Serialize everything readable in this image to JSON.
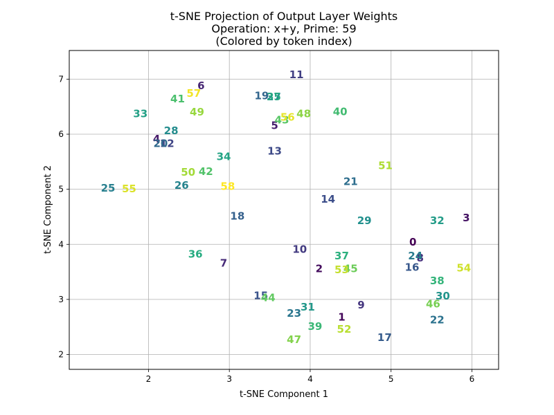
{
  "chart_data": {
    "type": "scatter",
    "title_lines": [
      "t-SNE Projection of Output Layer Weights",
      "Operation: x+y, Prime: 59",
      "(Colored by token index)"
    ],
    "xlabel": "t-SNE Component 1",
    "ylabel": "t-SNE Component 2",
    "xlim": [
      1.02,
      6.33
    ],
    "ylim": [
      1.73,
      7.52
    ],
    "xticks": [
      2,
      3,
      4,
      5,
      6
    ],
    "yticks": [
      2,
      3,
      4,
      5,
      6,
      7
    ],
    "grid": true,
    "colormap": "viridis",
    "color_min": 0,
    "color_max": 58,
    "points": [
      {
        "label": "0",
        "x": 5.27,
        "y": 4.04
      },
      {
        "label": "1",
        "x": 4.39,
        "y": 2.68
      },
      {
        "label": "2",
        "x": 4.11,
        "y": 3.56
      },
      {
        "label": "3",
        "x": 5.93,
        "y": 4.48
      },
      {
        "label": "4",
        "x": 2.1,
        "y": 5.91
      },
      {
        "label": "5",
        "x": 3.56,
        "y": 6.16
      },
      {
        "label": "6",
        "x": 2.65,
        "y": 6.88
      },
      {
        "label": "7",
        "x": 2.93,
        "y": 3.66
      },
      {
        "label": "8",
        "x": 5.36,
        "y": 3.75
      },
      {
        "label": "9",
        "x": 4.63,
        "y": 2.9
      },
      {
        "label": "10",
        "x": 3.87,
        "y": 3.91
      },
      {
        "label": "11",
        "x": 3.83,
        "y": 7.08
      },
      {
        "label": "12",
        "x": 2.23,
        "y": 5.83
      },
      {
        "label": "13",
        "x": 3.56,
        "y": 5.69
      },
      {
        "label": "14",
        "x": 4.22,
        "y": 4.82
      },
      {
        "label": "15",
        "x": 3.39,
        "y": 3.07
      },
      {
        "label": "16",
        "x": 5.26,
        "y": 3.58
      },
      {
        "label": "17",
        "x": 4.92,
        "y": 2.31
      },
      {
        "label": "18",
        "x": 3.1,
        "y": 4.51
      },
      {
        "label": "19",
        "x": 3.4,
        "y": 6.7
      },
      {
        "label": "20",
        "x": 2.15,
        "y": 5.83
      },
      {
        "label": "21",
        "x": 4.5,
        "y": 5.14
      },
      {
        "label": "22",
        "x": 5.57,
        "y": 2.63
      },
      {
        "label": "23",
        "x": 3.8,
        "y": 2.75
      },
      {
        "label": "24",
        "x": 5.3,
        "y": 3.79
      },
      {
        "label": "25",
        "x": 1.5,
        "y": 5.02
      },
      {
        "label": "26",
        "x": 2.41,
        "y": 5.07
      },
      {
        "label": "27",
        "x": 3.55,
        "y": 6.68
      },
      {
        "label": "28",
        "x": 2.28,
        "y": 6.06
      },
      {
        "label": "29",
        "x": 4.67,
        "y": 4.43
      },
      {
        "label": "30",
        "x": 5.64,
        "y": 3.06
      },
      {
        "label": "31",
        "x": 3.97,
        "y": 2.86
      },
      {
        "label": "32",
        "x": 5.57,
        "y": 4.43
      },
      {
        "label": "33",
        "x": 1.9,
        "y": 6.37
      },
      {
        "label": "34",
        "x": 2.93,
        "y": 5.59
      },
      {
        "label": "35",
        "x": 3.55,
        "y": 6.68
      },
      {
        "label": "36",
        "x": 2.58,
        "y": 3.82
      },
      {
        "label": "37",
        "x": 4.39,
        "y": 3.79
      },
      {
        "label": "38",
        "x": 5.57,
        "y": 3.34
      },
      {
        "label": "39",
        "x": 4.06,
        "y": 2.51
      },
      {
        "label": "40",
        "x": 4.37,
        "y": 6.41
      },
      {
        "label": "41",
        "x": 2.36,
        "y": 6.64
      },
      {
        "label": "42",
        "x": 2.71,
        "y": 5.32
      },
      {
        "label": "43",
        "x": 3.65,
        "y": 6.26
      },
      {
        "label": "44",
        "x": 3.48,
        "y": 3.03
      },
      {
        "label": "45",
        "x": 4.5,
        "y": 3.56
      },
      {
        "label": "46",
        "x": 5.52,
        "y": 2.92
      },
      {
        "label": "47",
        "x": 3.8,
        "y": 2.27
      },
      {
        "label": "48",
        "x": 3.92,
        "y": 6.37
      },
      {
        "label": "49",
        "x": 2.6,
        "y": 6.4
      },
      {
        "label": "50",
        "x": 2.49,
        "y": 5.31
      },
      {
        "label": "51",
        "x": 4.93,
        "y": 5.43
      },
      {
        "label": "52",
        "x": 4.42,
        "y": 2.46
      },
      {
        "label": "53",
        "x": 4.39,
        "y": 3.54
      },
      {
        "label": "54",
        "x": 5.9,
        "y": 3.57
      },
      {
        "label": "55",
        "x": 1.76,
        "y": 5.01
      },
      {
        "label": "56",
        "x": 3.72,
        "y": 6.31
      },
      {
        "label": "57",
        "x": 2.56,
        "y": 6.74
      },
      {
        "label": "58",
        "x": 2.98,
        "y": 5.05
      }
    ]
  }
}
